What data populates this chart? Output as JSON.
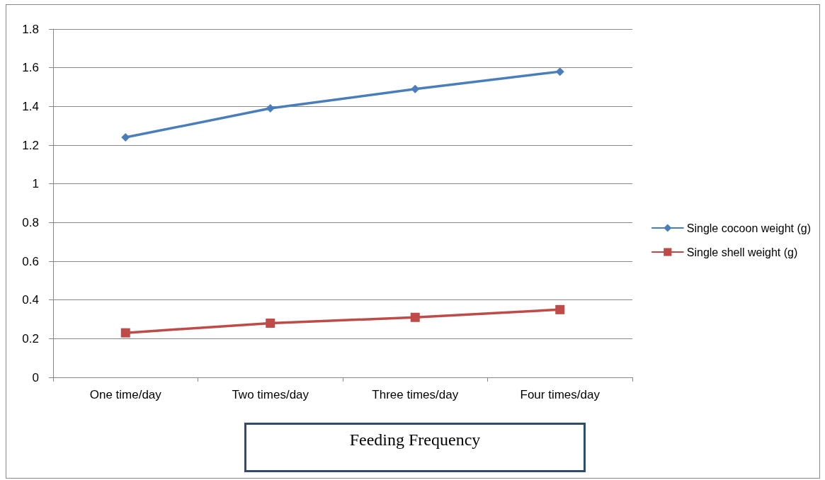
{
  "chart_data": {
    "type": "line",
    "xlabel": "Feeding Frequency",
    "categories": [
      "One time/day",
      "Two times/day",
      "Three times/day",
      "Four times/day"
    ],
    "series": [
      {
        "name": "Single cocoon weight (g)",
        "color": "#4a7ebb",
        "marker": "diamond",
        "values": [
          1.24,
          1.39,
          1.49,
          1.58
        ]
      },
      {
        "name": "Single shell weight (g)",
        "color": "#be4b48",
        "marker": "square",
        "values": [
          0.23,
          0.28,
          0.31,
          0.35
        ]
      }
    ],
    "ylim": [
      0,
      1.8
    ],
    "yticks": [
      0,
      0.2,
      0.4,
      0.6,
      0.8,
      1,
      1.2,
      1.4,
      1.6,
      1.8
    ],
    "grid": "y",
    "legend": "right",
    "line_style": "solid"
  }
}
